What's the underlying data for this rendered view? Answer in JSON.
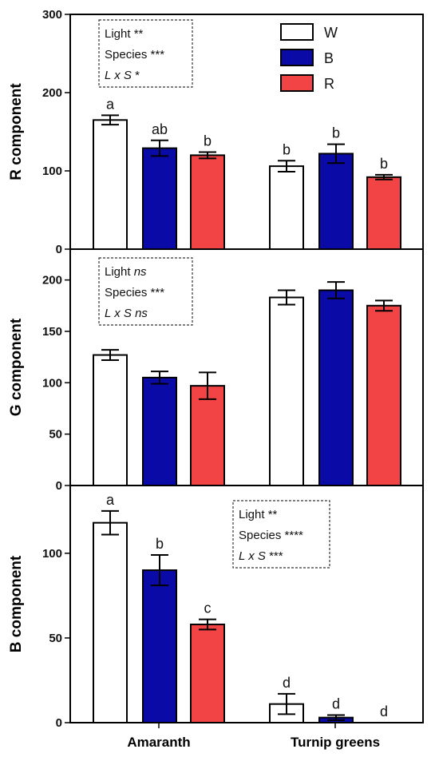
{
  "colors": {
    "W": "#ffffff",
    "B": "#0a0aa6",
    "R": "#f24444"
  },
  "legend": [
    {
      "key": "W",
      "label": "W"
    },
    {
      "key": "B",
      "label": "B"
    },
    {
      "key": "R",
      "label": "R"
    }
  ],
  "chart_data": [
    {
      "type": "bar",
      "ylabel": "R component",
      "ylim": [
        0,
        300
      ],
      "yticks": [
        0,
        100,
        200,
        300
      ],
      "categories": [
        "Amaranth",
        "Turnip greens"
      ],
      "series": [
        {
          "name": "W",
          "values": [
            165,
            106
          ],
          "errors": [
            6,
            7
          ],
          "letters": [
            "a",
            "b"
          ]
        },
        {
          "name": "B",
          "values": [
            129,
            122
          ],
          "errors": [
            10,
            12
          ],
          "letters": [
            "ab",
            "b"
          ]
        },
        {
          "name": "R",
          "values": [
            120,
            92
          ],
          "errors": [
            4,
            3
          ],
          "letters": [
            "b",
            "b"
          ]
        }
      ],
      "stats": [
        {
          "label": "Light",
          "value": "**",
          "italic": false
        },
        {
          "label": "Species",
          "value": "***",
          "italic": false
        },
        {
          "label": "L x S",
          "value": "*",
          "italic": true
        }
      ]
    },
    {
      "type": "bar",
      "ylabel": "G component",
      "ylim": [
        0,
        230
      ],
      "yticks": [
        0,
        50,
        100,
        150,
        200
      ],
      "categories": [
        "Amaranth",
        "Turnip greens"
      ],
      "series": [
        {
          "name": "W",
          "values": [
            127,
            183
          ],
          "errors": [
            5,
            7
          ],
          "letters": [
            "",
            ""
          ]
        },
        {
          "name": "B",
          "values": [
            105,
            190
          ],
          "errors": [
            6,
            8
          ],
          "letters": [
            "",
            ""
          ]
        },
        {
          "name": "R",
          "values": [
            97,
            175
          ],
          "errors": [
            13,
            5
          ],
          "letters": [
            "",
            ""
          ]
        }
      ],
      "stats": [
        {
          "label": "Light",
          "value": "ns",
          "italic": false,
          "valueItalic": true
        },
        {
          "label": "Species",
          "value": "***",
          "italic": false
        },
        {
          "label": "L x S",
          "value": "ns",
          "italic": true
        }
      ]
    },
    {
      "type": "bar",
      "ylabel": "B component",
      "ylim": [
        0,
        140
      ],
      "yticks": [
        0,
        50,
        100
      ],
      "xlabel_visible": true,
      "categories": [
        "Amaranth",
        "Turnip greens"
      ],
      "series": [
        {
          "name": "W",
          "values": [
            118,
            11
          ],
          "errors": [
            7,
            6
          ],
          "letters": [
            "a",
            "d"
          ]
        },
        {
          "name": "B",
          "values": [
            90,
            3
          ],
          "errors": [
            9,
            1.5
          ],
          "letters": [
            "b",
            "d"
          ]
        },
        {
          "name": "R",
          "values": [
            58,
            0
          ],
          "errors": [
            3,
            0
          ],
          "letters": [
            "c",
            "d"
          ]
        }
      ],
      "stats": [
        {
          "label": "Light",
          "value": "**",
          "italic": false
        },
        {
          "label": "Species",
          "value": "****",
          "italic": false
        },
        {
          "label": "L x S",
          "value": "***",
          "italic": true
        }
      ]
    }
  ]
}
